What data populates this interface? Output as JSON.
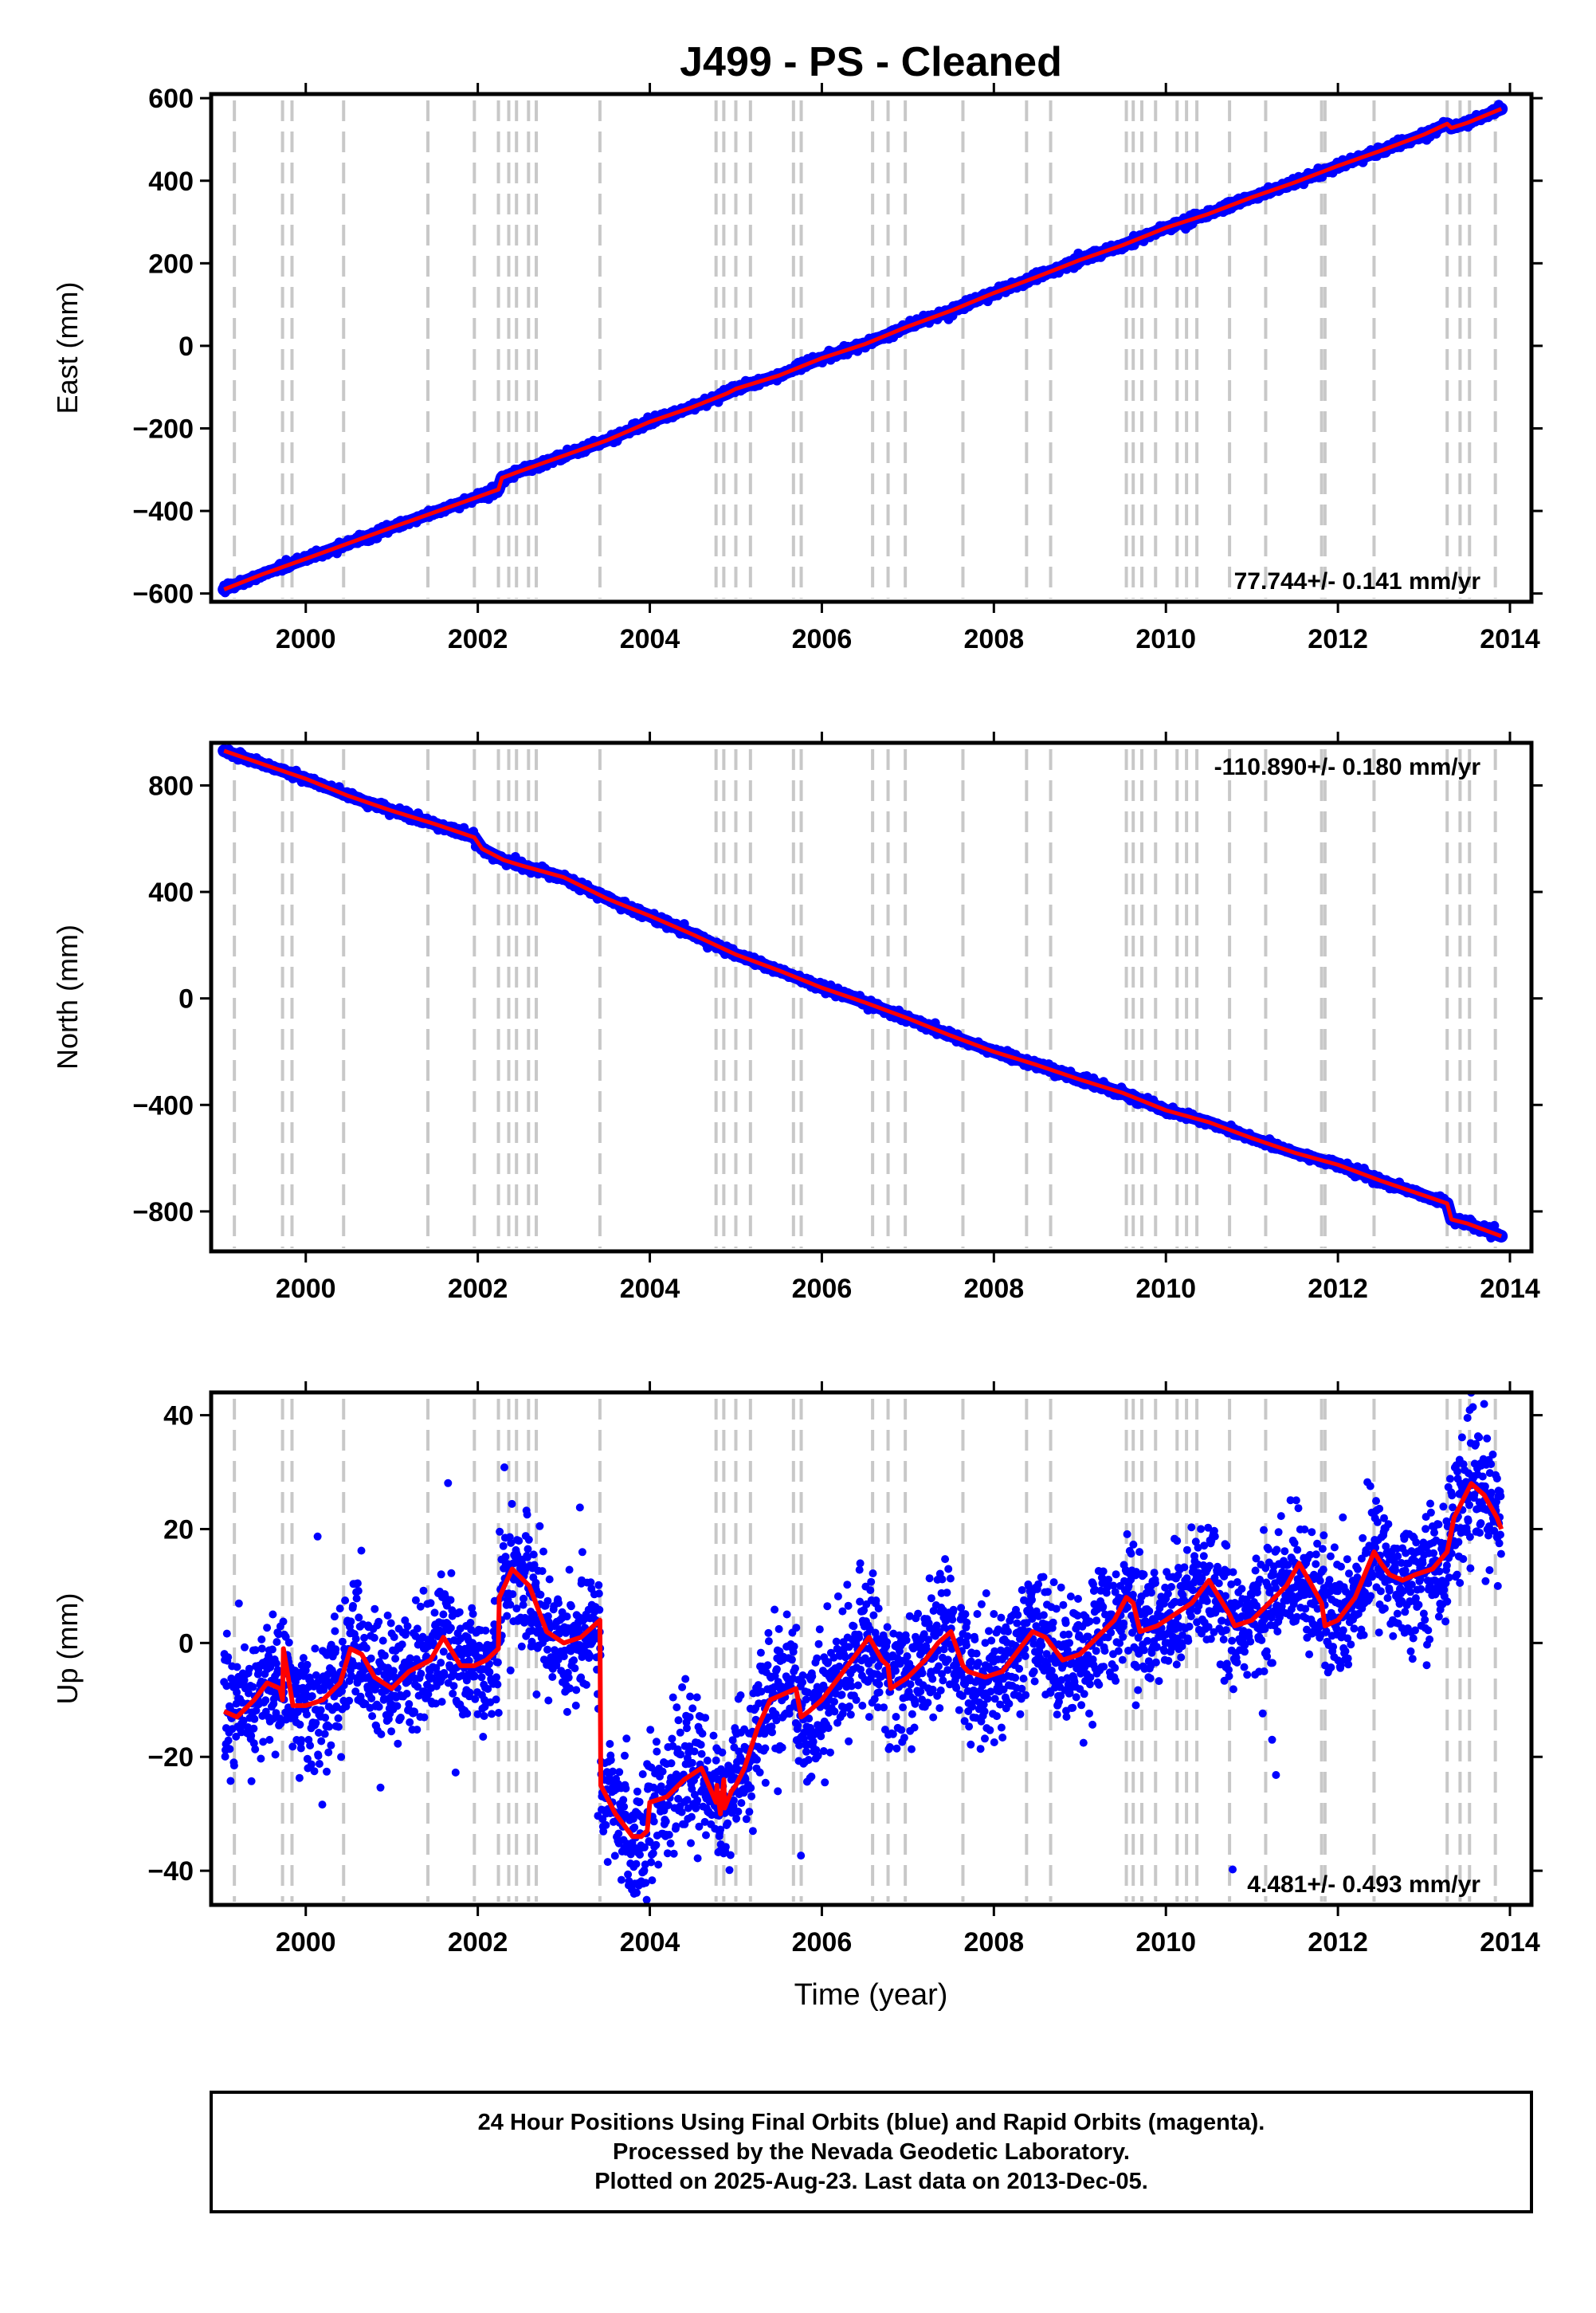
{
  "title": "J499  - PS - Cleaned",
  "x_axis": {
    "label": "Time (year)",
    "xlim": [
      1998.9,
      2014.25
    ],
    "ticks": [
      2000,
      2002,
      2004,
      2006,
      2008,
      2010,
      2012,
      2014
    ],
    "tick_labels": [
      "2000",
      "2002",
      "2004",
      "2006",
      "2008",
      "2010",
      "2012",
      "2014"
    ]
  },
  "event_lines": [
    1999.17,
    1999.73,
    1999.84,
    2000.44,
    2001.42,
    2001.96,
    2002.24,
    2002.36,
    2002.45,
    2002.59,
    2002.68,
    2003.42,
    2004.77,
    2004.86,
    2005.0,
    2005.17,
    2005.67,
    2005.76,
    2006.59,
    2006.77,
    2006.97,
    2007.64,
    2008.38,
    2008.66,
    2009.54,
    2009.62,
    2009.72,
    2009.88,
    2010.13,
    2010.24,
    2010.36,
    2010.74,
    2011.16,
    2011.81,
    2011.85,
    2012.42,
    2013.27,
    2013.42,
    2013.53,
    2013.83
  ],
  "colors": {
    "observations": "#0000ff",
    "model_fit": "#ff0000",
    "event_lines": "#c8c8c8",
    "frame": "#000000"
  },
  "chart_data": [
    {
      "type": "scatter",
      "component": "East",
      "ylabel": "East (mm)",
      "ylim": [
        -620,
        610
      ],
      "yticks": [
        -600,
        -400,
        -200,
        0,
        200,
        400,
        600
      ],
      "ytick_labels": [
        "−600",
        "−400",
        "−200",
        "0",
        "200",
        "400",
        "600"
      ],
      "rate_annotation": "77.744+/- 0.141 mm/yr",
      "annotation_position": "bottom-right",
      "series": [
        {
          "x": [
            1999.05,
            1999.5,
            2000.0,
            2000.5,
            2001.0,
            2001.5,
            2002.0,
            2002.24,
            2002.28,
            2002.5,
            2003.0,
            2003.5,
            2004.0,
            2004.5,
            2004.9,
            2005.0,
            2005.5,
            2006.0,
            2006.5,
            2007.0,
            2007.5,
            2008.0,
            2008.5,
            2009.0,
            2009.5,
            2010.0,
            2010.5,
            2011.0,
            2011.5,
            2012.0,
            2012.5,
            2013.0,
            2013.27,
            2013.32,
            2013.5,
            2013.9
          ],
          "y": [
            -590,
            -553,
            -516,
            -478,
            -440,
            -403,
            -366,
            -348,
            -320,
            -303,
            -266,
            -229,
            -184,
            -148,
            -115,
            -104,
            -72,
            -30,
            4,
            47,
            85,
            128,
            167,
            208,
            244,
            286,
            320,
            360,
            396,
            436,
            473,
            512,
            538,
            528,
            540,
            574
          ]
        }
      ]
    },
    {
      "type": "scatter",
      "component": "North",
      "ylabel": "North (mm)",
      "ylim": [
        -950,
        960
      ],
      "yticks": [
        -800,
        -400,
        0,
        400,
        800
      ],
      "ytick_labels": [
        "−800",
        "−400",
        "0",
        "400",
        "800"
      ],
      "rate_annotation": "-110.890+/- 0.180 mm/yr",
      "annotation_position": "top-right",
      "series": [
        {
          "x": [
            1999.05,
            1999.5,
            2000.0,
            2000.5,
            2001.0,
            2001.5,
            2001.96,
            2002.05,
            2002.3,
            2002.5,
            2003.0,
            2003.5,
            2004.0,
            2004.5,
            2005.0,
            2005.5,
            2006.0,
            2006.5,
            2007.0,
            2007.5,
            2008.0,
            2008.5,
            2009.0,
            2009.5,
            2010.0,
            2010.5,
            2011.0,
            2011.5,
            2012.0,
            2012.5,
            2013.0,
            2013.27,
            2013.32,
            2013.5,
            2013.9
          ],
          "y": [
            930,
            880,
            825,
            760,
            705,
            655,
            605,
            562,
            520,
            500,
            455,
            375,
            310,
            240,
            165,
            105,
            40,
            -15,
            -75,
            -140,
            -200,
            -250,
            -305,
            -355,
            -420,
            -465,
            -525,
            -580,
            -625,
            -685,
            -740,
            -770,
            -830,
            -845,
            -893
          ]
        }
      ]
    },
    {
      "type": "scatter",
      "component": "Up",
      "ylabel": "Up (mm)",
      "ylim": [
        -46,
        44
      ],
      "yticks": [
        -40,
        -20,
        0,
        20,
        40
      ],
      "ytick_labels": [
        "−40",
        "−20",
        "0",
        "20",
        "40"
      ],
      "rate_annotation": "4.481+/- 0.493 mm/yr",
      "annotation_position": "bottom-right",
      "series": [
        {
          "x": [
            1999.05,
            1999.2,
            1999.4,
            1999.55,
            1999.7,
            1999.73,
            1999.74,
            1999.85,
            2000.0,
            2000.2,
            2000.4,
            2000.52,
            2000.65,
            2000.8,
            2001.0,
            2001.2,
            2001.45,
            2001.6,
            2001.8,
            2001.96,
            2002.1,
            2002.24,
            2002.25,
            2002.4,
            2002.6,
            2002.8,
            2003.0,
            2003.2,
            2003.42,
            2003.43,
            2003.6,
            2003.8,
            2003.9,
            2003.97,
            2004.0,
            2004.2,
            2004.4,
            2004.6,
            2004.77,
            2004.78,
            2004.82,
            2004.86,
            2004.87,
            2004.95,
            2005.0,
            2005.1,
            2005.25,
            2005.4,
            2005.55,
            2005.7,
            2005.76,
            2005.85,
            2006.0,
            2006.2,
            2006.4,
            2006.55,
            2006.7,
            2006.77,
            2006.8,
            2007.0,
            2007.2,
            2007.35,
            2007.5,
            2007.64,
            2007.7,
            2007.9,
            2008.1,
            2008.3,
            2008.45,
            2008.6,
            2008.8,
            2009.0,
            2009.2,
            2009.4,
            2009.54,
            2009.62,
            2009.7,
            2009.9,
            2010.1,
            2010.3,
            2010.5,
            2010.74,
            2010.8,
            2011.0,
            2011.2,
            2011.4,
            2011.55,
            2011.7,
            2011.81,
            2011.85,
            2012.0,
            2012.2,
            2012.42,
            2012.5,
            2012.6,
            2012.75,
            2012.9,
            2013.1,
            2013.27,
            2013.35,
            2013.55,
            2013.7,
            2013.85,
            2013.9
          ],
          "y": [
            -12,
            -13,
            -10,
            -7,
            -8,
            -10,
            -1,
            -11,
            -11,
            -10,
            -7,
            -1,
            -2,
            -6,
            -8,
            -5,
            -3,
            1,
            -4,
            -4,
            -3,
            -1,
            8,
            13,
            10,
            2,
            0,
            1,
            4,
            -25,
            -30,
            -34,
            -34,
            -33,
            -28,
            -27,
            -24,
            -22,
            -28,
            -25,
            -30,
            -24,
            -29,
            -26,
            -25,
            -22,
            -15,
            -10,
            -9,
            -8,
            -13,
            -12,
            -10,
            -6,
            -2,
            1,
            -3,
            -4,
            -8,
            -6,
            -3,
            0,
            2,
            -4,
            -5,
            -6,
            -5,
            -1,
            2,
            1,
            -3,
            -2,
            1,
            4,
            8,
            7,
            2,
            3,
            5,
            7,
            11,
            5,
            3,
            4,
            7,
            10,
            14,
            10,
            7,
            3,
            4,
            8,
            16,
            14,
            12,
            11,
            12,
            13,
            16,
            22,
            28,
            26,
            22,
            20
          ]
        }
      ]
    }
  ],
  "caption": {
    "line1": "24 Hour Positions Using Final Orbits (blue) and Rapid Orbits (magenta).",
    "line2": "Processed by the Nevada Geodetic Laboratory.",
    "line3": "Plotted on 2025-Aug-23. Last data on 2013-Dec-05."
  }
}
